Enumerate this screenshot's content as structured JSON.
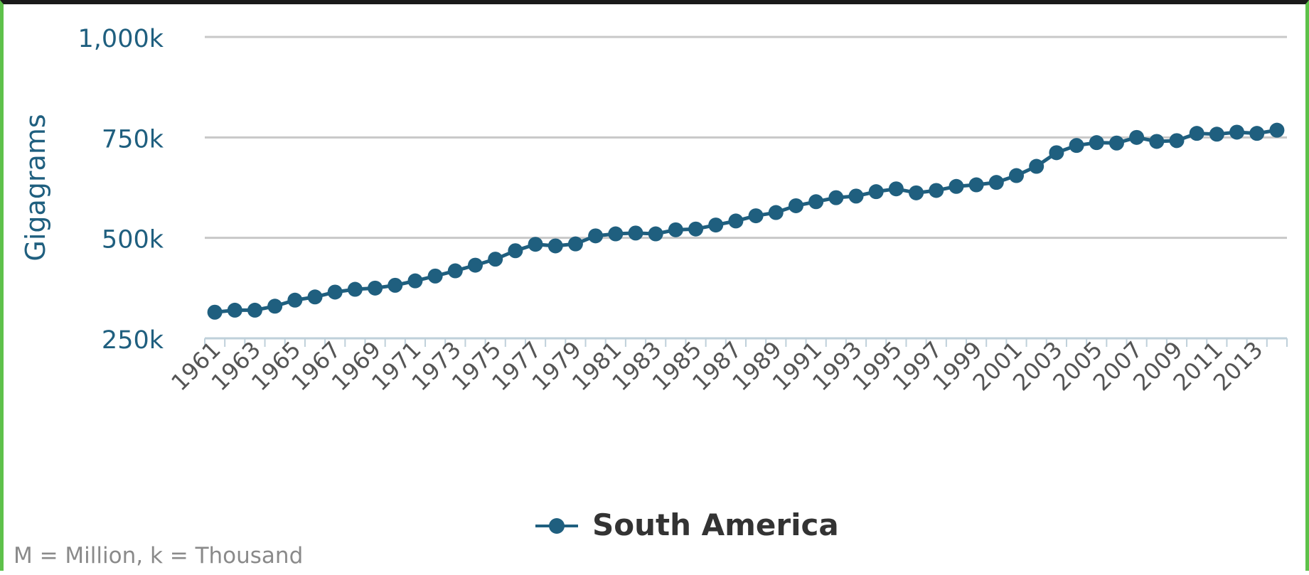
{
  "chart_data": {
    "type": "line",
    "ylabel": "Gigagrams",
    "ylim": [
      250000,
      1000000
    ],
    "y_ticks": [
      {
        "value": 250000,
        "label": "250k"
      },
      {
        "value": 500000,
        "label": "500k"
      },
      {
        "value": 750000,
        "label": "750k"
      },
      {
        "value": 1000000,
        "label": "1,000k"
      }
    ],
    "x_tick_labels": [
      "1961",
      "1963",
      "1965",
      "1967",
      "1969",
      "1971",
      "1973",
      "1975",
      "1977",
      "1979",
      "1981",
      "1983",
      "1985",
      "1987",
      "1989",
      "1991",
      "1993",
      "1995",
      "1997",
      "1999",
      "2001",
      "2003",
      "2005",
      "2007",
      "2009",
      "2011",
      "2013"
    ],
    "x": [
      1961,
      1962,
      1963,
      1964,
      1965,
      1966,
      1967,
      1968,
      1969,
      1970,
      1971,
      1972,
      1973,
      1974,
      1975,
      1976,
      1977,
      1978,
      1979,
      1980,
      1981,
      1982,
      1983,
      1984,
      1985,
      1986,
      1987,
      1988,
      1989,
      1990,
      1991,
      1992,
      1993,
      1994,
      1995,
      1996,
      1997,
      1998,
      1999,
      2000,
      2001,
      2002,
      2003,
      2004,
      2005,
      2006,
      2007,
      2008,
      2009,
      2010,
      2011,
      2012,
      2013,
      2014
    ],
    "series": [
      {
        "name": "South America",
        "color": "#1f5f7f",
        "values": [
          315000,
          320000,
          320000,
          330000,
          345000,
          353000,
          365000,
          372000,
          375000,
          382000,
          393000,
          405000,
          418000,
          432000,
          447000,
          468000,
          484000,
          480000,
          485000,
          505000,
          510000,
          512000,
          510000,
          520000,
          522000,
          532000,
          542000,
          555000,
          563000,
          580000,
          590000,
          600000,
          604000,
          615000,
          622000,
          612000,
          618000,
          628000,
          632000,
          638000,
          655000,
          678000,
          712000,
          730000,
          737000,
          736000,
          750000,
          740000,
          742000,
          760000,
          758000,
          763000,
          760000,
          768000
        ]
      }
    ],
    "grid": true,
    "legend": "bottom-center"
  },
  "footnote": "M = Million, k = Thousand"
}
